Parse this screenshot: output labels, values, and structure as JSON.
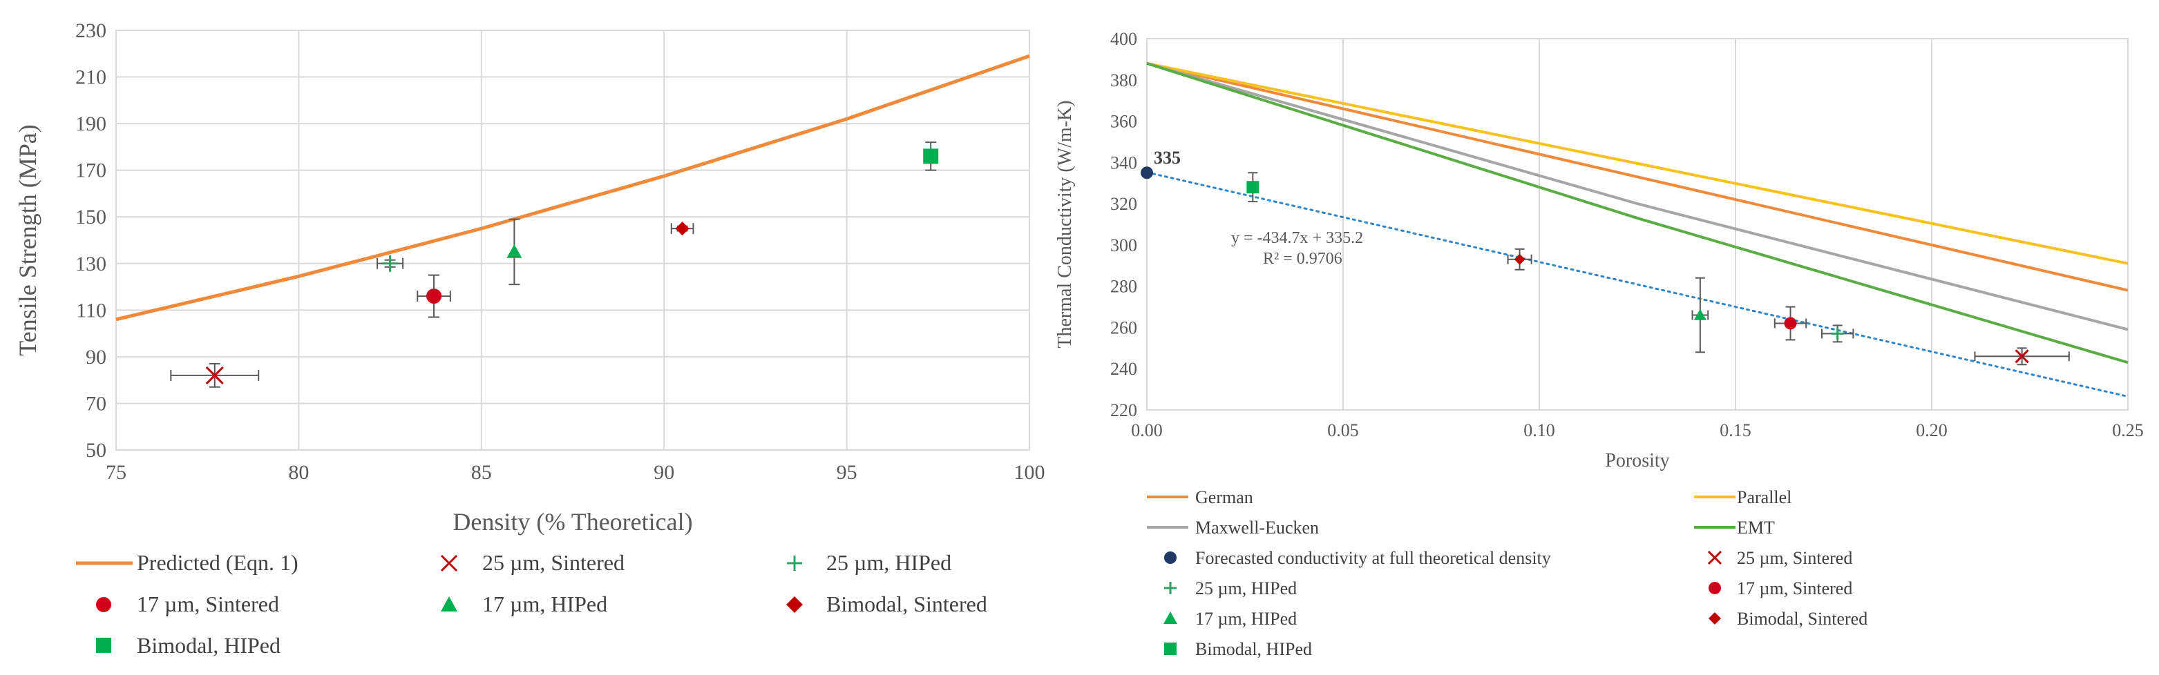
{
  "colors": {
    "orange": "#f08a3a",
    "yellow": "#f7c21f",
    "gray": "#a6a6a6",
    "green": "#5aad45",
    "red": "#d0021b",
    "red_dark": "#c00000",
    "green_marker": "#00b050",
    "green_plus": "#2ea060",
    "navy": "#1f3864",
    "trend_blue": "#2e86c8"
  },
  "chart_data": [
    {
      "type": "scatter",
      "name": "tensile",
      "xlabel": "Density (% Theoretical)",
      "ylabel": "Tensile Strength (MPa)",
      "xlim": [
        75,
        100
      ],
      "ylim": [
        50,
        230
      ],
      "xticks": [
        75,
        80,
        85,
        90,
        95,
        100
      ],
      "yticks": [
        50,
        70,
        90,
        110,
        130,
        150,
        170,
        190,
        210,
        230
      ],
      "grid": true,
      "legend_position": "bottom",
      "predicted_line": {
        "name": "Predicted (Eqn. 1)",
        "points": [
          [
            75,
            106
          ],
          [
            80,
            124.5
          ],
          [
            85,
            145
          ],
          [
            90,
            167.5
          ],
          [
            95,
            192
          ],
          [
            100,
            219
          ]
        ]
      },
      "series": [
        {
          "name": "25 µm, Sintered",
          "marker": "x",
          "x": 77.7,
          "y": 82,
          "xerr": 1.2,
          "yerr": 5
        },
        {
          "name": "25 µm, HIPed",
          "marker": "plus",
          "x": 82.5,
          "y": 130,
          "xerr": 0.35,
          "yerr": 1.5
        },
        {
          "name": "17 µm, Sintered",
          "marker": "circle",
          "x": 83.7,
          "y": 116,
          "xerr": 0.45,
          "yerr": 9
        },
        {
          "name": "17 µm, HIPed",
          "marker": "triangle",
          "x": 85.9,
          "y": 135,
          "xerr": 0,
          "yerr": 14
        },
        {
          "name": "Bimodal, Sintered",
          "marker": "diamond",
          "x": 90.5,
          "y": 145,
          "xerr": 0.3,
          "yerr": 1
        },
        {
          "name": "Bimodal, HIPed",
          "marker": "square",
          "x": 97.3,
          "y": 176,
          "xerr": 0,
          "yerr": 6
        }
      ],
      "legend": [
        "Predicted (Eqn. 1)",
        "25 µm, Sintered",
        "25 µm, HIPed",
        "17 µm, Sintered",
        "17 µm, HIPed",
        "Bimodal, Sintered",
        "Bimodal, HIPed"
      ]
    },
    {
      "type": "scatter",
      "name": "conductivity",
      "xlabel": "Porosity",
      "ylabel": "Thermal Conductivity (W/m-K)",
      "xlim": [
        0,
        0.25
      ],
      "ylim": [
        220,
        400
      ],
      "xticks": [
        "0.00",
        "0.05",
        "0.10",
        "0.15",
        "0.20",
        "0.25"
      ],
      "yticks": [
        220,
        240,
        260,
        280,
        300,
        320,
        340,
        360,
        380,
        400
      ],
      "grid": true,
      "legend_position": "bottom",
      "model_lines": [
        {
          "name": "German",
          "points": [
            [
              0,
              388
            ],
            [
              0.25,
              278
            ]
          ]
        },
        {
          "name": "Parallel",
          "points": [
            [
              0,
              388
            ],
            [
              0.25,
              291
            ]
          ]
        },
        {
          "name": "Maxwell-Eucken",
          "points": [
            [
              0,
              388
            ],
            [
              0.125,
              320
            ],
            [
              0.25,
              259
            ]
          ]
        },
        {
          "name": "EMT",
          "points": [
            [
              0,
              388
            ],
            [
              0.125,
              313
            ],
            [
              0.25,
              243
            ]
          ]
        }
      ],
      "trendline": {
        "slope": -434.7,
        "intercept": 335.2,
        "r2": 0.9706,
        "equation": "y = -434.7x + 335.2",
        "r2_label": "R² = 0.9706"
      },
      "forecast_point": {
        "name": "Forecasted conductivity at full theoretical density",
        "x": 0,
        "y": 335,
        "label": "335"
      },
      "series": [
        {
          "name": "25 µm, Sintered",
          "marker": "x",
          "x": 0.223,
          "y": 246,
          "xerr": 0.012,
          "yerr": 4
        },
        {
          "name": "25 µm, HIPed",
          "marker": "plus",
          "x": 0.176,
          "y": 257,
          "xerr": 0.004,
          "yerr": 4
        },
        {
          "name": "17 µm, Sintered",
          "marker": "circle",
          "x": 0.164,
          "y": 262,
          "xerr": 0.004,
          "yerr": 8
        },
        {
          "name": "17 µm, HIPed",
          "marker": "triangle",
          "x": 0.141,
          "y": 266,
          "xerr": 0.002,
          "yerr": 18
        },
        {
          "name": "Bimodal, Sintered",
          "marker": "diamond",
          "x": 0.095,
          "y": 293,
          "xerr": 0.003,
          "yerr": 5
        },
        {
          "name": "Bimodal, HIPed",
          "marker": "square",
          "x": 0.027,
          "y": 328,
          "xerr": 0.0,
          "yerr": 7
        }
      ],
      "legend": [
        "German",
        "Parallel",
        "Maxwell-Eucken",
        "EMT",
        "Forecasted conductivity at full theoretical density",
        "25 µm, Sintered",
        "25 µm, HIPed",
        "17 µm, Sintered",
        "17 µm, HIPed",
        "Bimodal, Sintered",
        "Bimodal, HIPed"
      ]
    }
  ]
}
